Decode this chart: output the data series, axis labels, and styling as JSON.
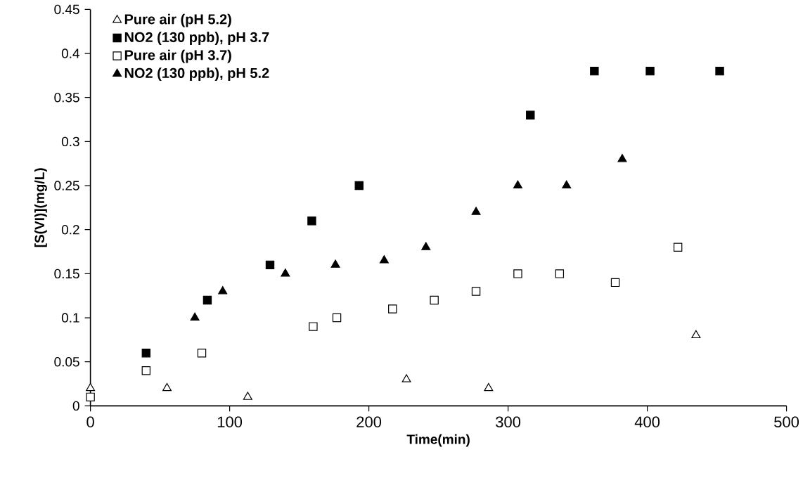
{
  "chart_data": {
    "type": "scatter",
    "xlabel": "Time(min)",
    "ylabel": "[S(VI)](mg/L)",
    "xlim": [
      0,
      500
    ],
    "ylim": [
      0,
      0.45
    ],
    "xticks": [
      0,
      100,
      200,
      300,
      400,
      500
    ],
    "yticks": [
      0,
      0.05,
      0.1,
      0.15,
      0.2,
      0.25,
      0.3,
      0.35,
      0.4,
      0.45
    ],
    "grid": false,
    "legend": "top left",
    "series": [
      {
        "name": "Pure air (pH 5.2)",
        "color": "#ffffff",
        "marker": "triangle",
        "x": [
          0,
          55,
          113,
          227,
          286,
          435
        ],
        "values": [
          0.02,
          0.02,
          0.01,
          0.03,
          0.02,
          0.08
        ]
      },
      {
        "name": "NO2 (130 ppb), pH 3.7",
        "color": "#000000",
        "marker": "square",
        "x": [
          40,
          84,
          129,
          159,
          193,
          316,
          362,
          402,
          452
        ],
        "values": [
          0.06,
          0.12,
          0.16,
          0.21,
          0.25,
          0.33,
          0.38,
          0.38,
          0.38
        ]
      },
      {
        "name": "Pure air (pH 3.7)",
        "color": "#ffffff",
        "marker": "square",
        "x": [
          0,
          40,
          80,
          160,
          177,
          217,
          247,
          277,
          307,
          337,
          377,
          422
        ],
        "values": [
          0.01,
          0.04,
          0.06,
          0.09,
          0.1,
          0.11,
          0.12,
          0.13,
          0.15,
          0.15,
          0.14,
          0.18
        ]
      },
      {
        "name": "NO2 (130 ppb), pH 5.2",
        "color": "#000000",
        "marker": "triangle",
        "x": [
          75,
          95,
          140,
          176,
          211,
          241,
          277,
          307,
          342,
          382
        ],
        "values": [
          0.1,
          0.13,
          0.15,
          0.16,
          0.165,
          0.18,
          0.22,
          0.25,
          0.25,
          0.28
        ]
      }
    ]
  }
}
